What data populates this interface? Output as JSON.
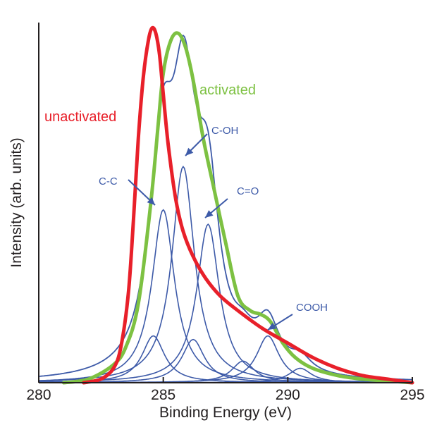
{
  "chart_data": {
    "type": "line",
    "xlabel": "Binding Energy (eV)",
    "ylabel": "Intensity (arb. units)",
    "xlim": [
      280,
      295
    ],
    "ylim": [
      0,
      1.0
    ],
    "x_ticks": [
      280,
      285,
      290,
      295
    ],
    "x_tick_labels": [
      "280",
      "285",
      "290",
      "295"
    ],
    "grid": false,
    "colors": {
      "unactivated": "#e8202a",
      "activated": "#7dc142",
      "fit": "#3d5aa8",
      "axis": "#231f20"
    },
    "series": [
      {
        "name": "unactivated",
        "color": "#e8202a",
        "x": [
          281.8,
          282.5,
          283.0,
          283.3,
          283.6,
          283.8,
          284.0,
          284.2,
          284.4,
          284.55,
          284.7,
          284.85,
          285.0,
          285.2,
          285.5,
          285.8,
          286.2,
          286.7,
          287.3,
          288.0,
          289.0,
          290.0,
          291.0,
          292.0,
          293.0,
          294.0,
          295.0
        ],
        "values": [
          0.0,
          0.01,
          0.04,
          0.1,
          0.25,
          0.45,
          0.68,
          0.85,
          0.95,
          0.985,
          0.97,
          0.91,
          0.8,
          0.66,
          0.51,
          0.42,
          0.35,
          0.29,
          0.24,
          0.2,
          0.15,
          0.11,
          0.07,
          0.04,
          0.02,
          0.01,
          0.0
        ]
      },
      {
        "name": "activated",
        "color": "#7dc142",
        "x": [
          281.0,
          282.0,
          283.0,
          283.5,
          284.0,
          284.5,
          284.8,
          285.0,
          285.3,
          285.6,
          285.9,
          286.2,
          286.6,
          287.0,
          287.5,
          288.0,
          288.5,
          288.9,
          289.3,
          289.8,
          290.3,
          291.0,
          292.0,
          293.0,
          294.0,
          295.0
        ],
        "values": [
          0.0,
          0.01,
          0.05,
          0.1,
          0.22,
          0.5,
          0.72,
          0.86,
          0.95,
          0.97,
          0.93,
          0.84,
          0.68,
          0.55,
          0.39,
          0.24,
          0.2,
          0.19,
          0.17,
          0.11,
          0.07,
          0.04,
          0.02,
          0.01,
          0.005,
          0.0
        ]
      }
    ],
    "fit_components": [
      {
        "label": "C-C",
        "center": 285.0,
        "height": 0.48
      },
      {
        "label": "C-OH",
        "center": 285.8,
        "height": 0.6
      },
      {
        "label": "C=O",
        "center": 286.8,
        "height": 0.44
      },
      {
        "label": "COOH",
        "center": 289.2,
        "height": 0.13
      },
      {
        "label": "",
        "center": 284.6,
        "height": 0.13
      },
      {
        "label": "",
        "center": 286.2,
        "height": 0.12
      },
      {
        "label": "",
        "center": 288.2,
        "height": 0.06
      },
      {
        "label": "",
        "center": 290.5,
        "height": 0.04
      }
    ],
    "annotations": [
      {
        "text": "unactivated",
        "color": "#e8202a"
      },
      {
        "text": "activated",
        "color": "#7dc142"
      },
      {
        "text": "C-C",
        "color": "#3d5aa8"
      },
      {
        "text": "C-OH",
        "color": "#3d5aa8"
      },
      {
        "text": "C=O",
        "color": "#3d5aa8"
      },
      {
        "text": "COOH",
        "color": "#3d5aa8"
      }
    ]
  }
}
